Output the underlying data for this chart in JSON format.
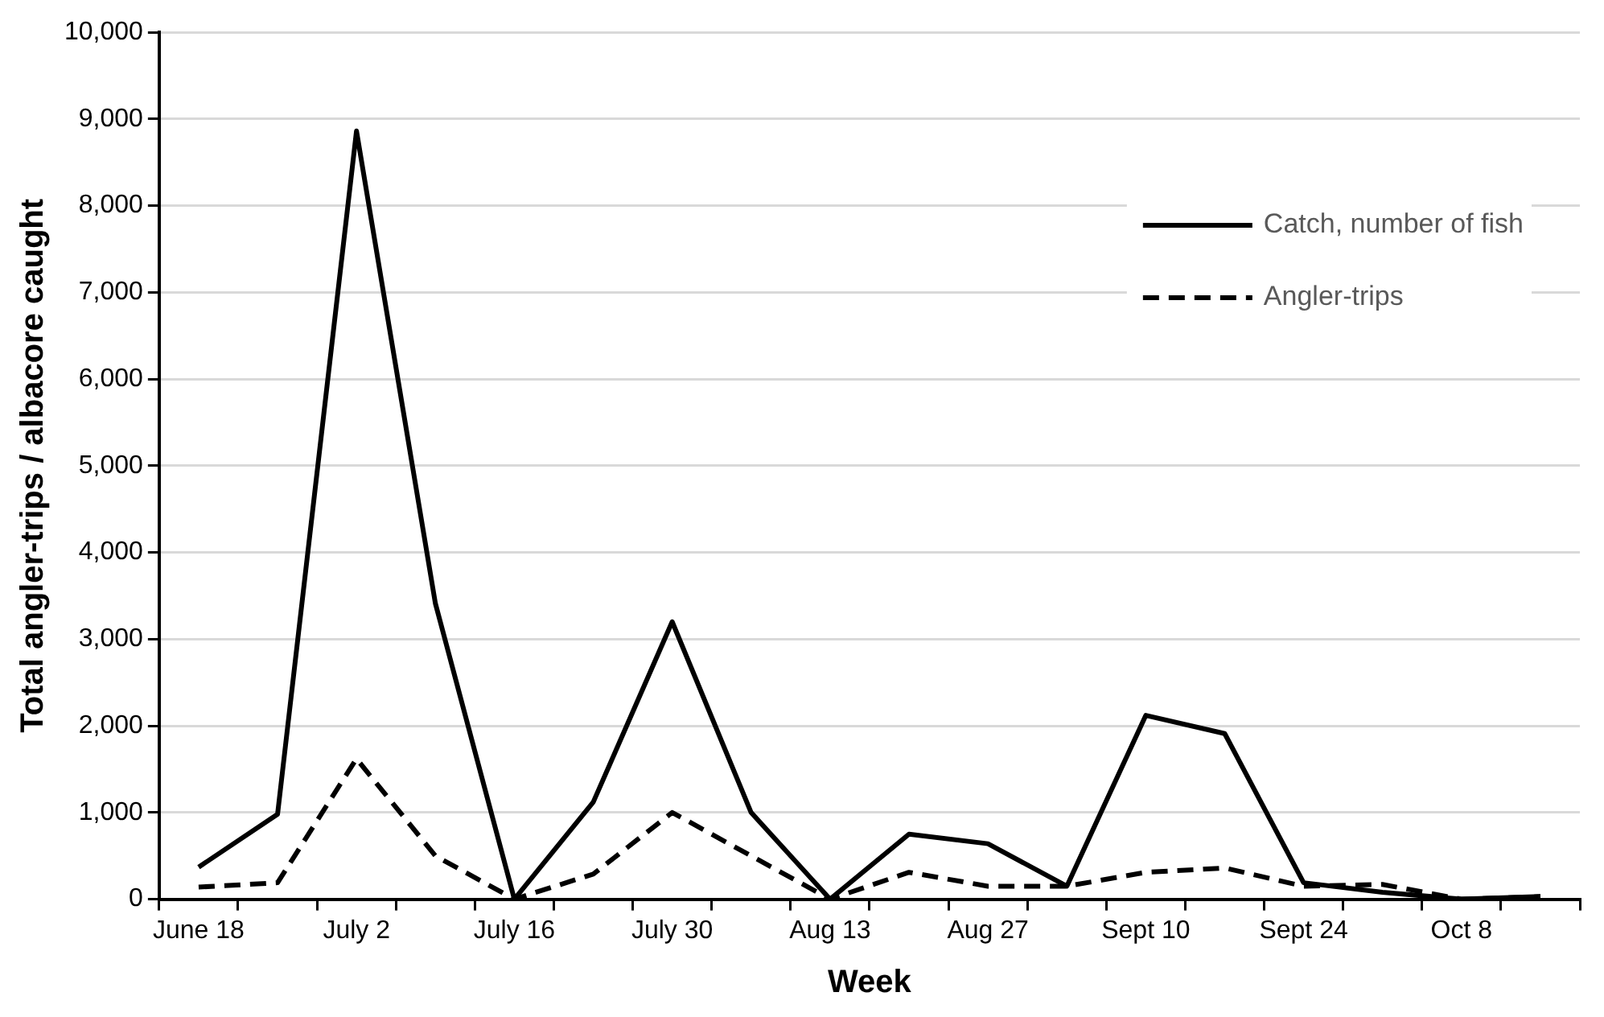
{
  "chart_data": {
    "type": "line",
    "xlabel": "Week",
    "ylabel": "Total angler-trips / albacore caught",
    "categories": [
      "June 18",
      null,
      "July 2",
      null,
      "July 16",
      null,
      "July 30",
      null,
      "Aug 13",
      null,
      "Aug 27",
      null,
      "Sept 10",
      null,
      "Sept 24",
      null,
      "Oct 8",
      null
    ],
    "series": [
      {
        "name": "Catch, number of fish",
        "color": "#000000",
        "line_style": "solid",
        "values": [
          370,
          980,
          8860,
          3410,
          0,
          1120,
          3200,
          1000,
          0,
          750,
          640,
          150,
          2120,
          1910,
          190,
          80,
          0,
          30
        ]
      },
      {
        "name": "Angler-trips",
        "color": "#000000",
        "line_style": "dashed",
        "values": [
          140,
          190,
          1620,
          500,
          0,
          290,
          1000,
          500,
          0,
          310,
          150,
          150,
          310,
          360,
          150,
          170,
          0,
          30
        ]
      }
    ],
    "ylim": [
      0,
      10000
    ],
    "yticks": [
      0,
      {
        "value": 1000,
        "label": "1,000"
      },
      {
        "value": 2000,
        "label": "2,000"
      },
      {
        "value": 3000,
        "label": "3,000"
      },
      {
        "value": 4000,
        "label": "4,000"
      },
      {
        "value": 5000,
        "label": "5,000"
      },
      {
        "value": 6000,
        "label": "6,000"
      },
      {
        "value": 7000,
        "label": "7,000"
      },
      {
        "value": 8000,
        "label": "8,000"
      },
      {
        "value": 9000,
        "label": "9,000"
      },
      {
        "value": 10000,
        "label": "10,000"
      }
    ],
    "grid": "y",
    "legend": "top right",
    "marker": "none"
  }
}
